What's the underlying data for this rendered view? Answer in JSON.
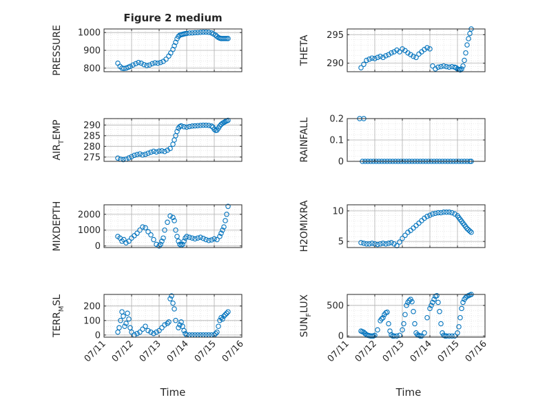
{
  "figure_title": "Figure 2 medium",
  "colors": {
    "marker": "#0072BD",
    "axis": "#262626",
    "grid": "#b0b0b0"
  },
  "x_ticks": [
    "07/11",
    "07/12",
    "07/13",
    "07/14",
    "07/15",
    "07/16"
  ],
  "chart_data": [
    {
      "type": "scatter",
      "title": "Figure 2 medium",
      "ylabel": {
        "parts": [
          {
            "t": "PRESSURE"
          }
        ]
      },
      "xlabel": "",
      "xlim": [
        0,
        5
      ],
      "ylim": [
        780,
        1020
      ],
      "yticks": [
        800,
        900,
        1000
      ],
      "ytick_labels": [
        "800",
        "900",
        "1000"
      ],
      "grid": true,
      "series": [
        {
          "x": [
            0.5,
            0.58,
            0.65,
            0.72,
            0.8,
            0.88,
            0.95,
            1.05,
            1.15,
            1.25,
            1.35,
            1.45,
            1.55,
            1.65,
            1.75,
            1.85,
            1.95,
            2.05,
            2.15,
            2.25,
            2.35,
            2.42,
            2.5,
            2.55,
            2.6,
            2.65,
            2.7,
            2.75,
            2.8,
            2.85,
            2.9,
            2.95,
            3.0,
            3.1,
            3.2,
            3.3,
            3.4,
            3.5,
            3.6,
            3.7,
            3.8,
            3.9,
            3.97,
            4.05,
            4.1,
            4.15,
            4.2,
            4.25,
            4.3,
            4.35,
            4.4,
            4.45,
            4.5
          ],
          "y": [
            828,
            810,
            800,
            798,
            800,
            805,
            810,
            818,
            825,
            832,
            828,
            820,
            815,
            818,
            825,
            830,
            828,
            832,
            838,
            850,
            868,
            885,
            905,
            925,
            945,
            965,
            978,
            985,
            988,
            990,
            992,
            994,
            995,
            997,
            998,
            999,
            1000,
            1001,
            1002,
            1002,
            1001,
            998,
            992,
            985,
            978,
            972,
            968,
            966,
            966,
            966,
            966,
            966,
            966
          ]
        }
      ]
    },
    {
      "type": "scatter",
      "ylabel": {
        "parts": [
          {
            "t": "THETA"
          }
        ]
      },
      "xlabel": "",
      "xlim": [
        0,
        5
      ],
      "ylim": [
        288.5,
        296
      ],
      "yticks": [
        290,
        295
      ],
      "ytick_labels": [
        "290",
        "295"
      ],
      "grid": true,
      "series": [
        {
          "x": [
            0.5,
            0.6,
            0.7,
            0.8,
            0.9,
            1.0,
            1.1,
            1.2,
            1.3,
            1.4,
            1.5,
            1.6,
            1.7,
            1.8,
            1.9,
            2.0,
            2.1,
            2.2,
            2.3,
            2.4,
            2.5,
            2.6,
            2.7,
            2.8,
            2.9,
            3.0,
            3.1,
            3.2,
            3.3,
            3.4,
            3.5,
            3.6,
            3.7,
            3.8,
            3.9,
            3.95,
            4.0,
            4.05,
            4.1,
            4.15,
            4.2,
            4.25,
            4.3,
            4.35,
            4.4,
            4.45,
            4.5
          ],
          "y": [
            289.2,
            289.8,
            290.5,
            290.7,
            290.9,
            290.8,
            291.0,
            291.2,
            291.0,
            291.3,
            291.5,
            291.8,
            292.0,
            292.3,
            292.0,
            292.5,
            292.2,
            291.8,
            291.5,
            291.2,
            291.0,
            291.6,
            292.0,
            292.4,
            292.7,
            292.5,
            289.5,
            289.0,
            289.3,
            289.4,
            289.5,
            289.4,
            289.3,
            289.4,
            289.3,
            289.2,
            289.0,
            288.9,
            288.8,
            289.0,
            289.5,
            290.5,
            291.8,
            293.2,
            294.3,
            295.2,
            296.0
          ]
        }
      ]
    },
    {
      "type": "scatter",
      "ylabel": {
        "parts": [
          {
            "t": "AIR"
          },
          {
            "t": "T",
            "sub": true
          },
          {
            "t": "EMP"
          }
        ]
      },
      "xlabel": "",
      "xlim": [
        0,
        5
      ],
      "ylim": [
        273,
        293
      ],
      "yticks": [
        275,
        280,
        285,
        290
      ],
      "ytick_labels": [
        "275",
        "280",
        "285",
        "290"
      ],
      "grid": true,
      "series": [
        {
          "x": [
            0.5,
            0.6,
            0.7,
            0.8,
            0.9,
            1.0,
            1.1,
            1.2,
            1.3,
            1.4,
            1.5,
            1.6,
            1.7,
            1.8,
            1.9,
            2.0,
            2.1,
            2.2,
            2.3,
            2.4,
            2.5,
            2.55,
            2.6,
            2.65,
            2.7,
            2.75,
            2.8,
            2.9,
            3.0,
            3.1,
            3.2,
            3.3,
            3.4,
            3.5,
            3.6,
            3.7,
            3.8,
            3.9,
            3.95,
            4.0,
            4.05,
            4.1,
            4.15,
            4.2,
            4.25,
            4.3,
            4.35,
            4.4,
            4.45,
            4.5
          ],
          "y": [
            274.5,
            274.0,
            273.8,
            274.0,
            274.6,
            275.2,
            275.8,
            276.2,
            276.5,
            276.0,
            276.3,
            276.8,
            277.3,
            277.7,
            277.4,
            277.8,
            277.9,
            277.6,
            278.2,
            279.0,
            281.0,
            283.0,
            285.0,
            287.0,
            288.5,
            289.3,
            289.6,
            289.2,
            289.0,
            289.3,
            289.5,
            289.6,
            289.7,
            289.8,
            289.9,
            289.9,
            289.8,
            289.5,
            289.0,
            288.0,
            287.5,
            287.6,
            288.5,
            289.5,
            290.3,
            290.8,
            291.2,
            291.6,
            291.9,
            292.2
          ]
        }
      ]
    },
    {
      "type": "scatter",
      "ylabel": {
        "parts": [
          {
            "t": "RAINFALL"
          }
        ]
      },
      "xlabel": "",
      "xlim": [
        0,
        5
      ],
      "ylim": [
        0,
        0.2
      ],
      "yticks": [
        0,
        0.1,
        0.2
      ],
      "ytick_labels": [
        "0",
        "0.1",
        "0.2"
      ],
      "grid": true,
      "series": [
        {
          "x": [
            0.45,
            0.6,
            0.55,
            0.65,
            0.75,
            0.85,
            0.95,
            1.05,
            1.15,
            1.25,
            1.35,
            1.45,
            1.55,
            1.65,
            1.75,
            1.85,
            1.95,
            2.05,
            2.15,
            2.25,
            2.35,
            2.45,
            2.55,
            2.65,
            2.75,
            2.85,
            2.95,
            3.05,
            3.15,
            3.25,
            3.35,
            3.45,
            3.55,
            3.65,
            3.75,
            3.85,
            3.95,
            4.05,
            4.15,
            4.25,
            4.35,
            4.45,
            4.5
          ],
          "y": [
            0.2,
            0.2,
            0,
            0,
            0,
            0,
            0,
            0,
            0,
            0,
            0,
            0,
            0,
            0,
            0,
            0,
            0,
            0,
            0,
            0,
            0,
            0,
            0,
            0,
            0,
            0,
            0,
            0,
            0,
            0,
            0,
            0,
            0,
            0,
            0,
            0,
            0,
            0,
            0,
            0,
            0,
            0,
            0
          ]
        }
      ]
    },
    {
      "type": "scatter",
      "ylabel": {
        "parts": [
          {
            "t": "MIXDEPTH"
          }
        ]
      },
      "xlabel": "",
      "xlim": [
        0,
        5
      ],
      "ylim": [
        -100,
        2600
      ],
      "yticks": [
        0,
        1000,
        2000
      ],
      "ytick_labels": [
        "0",
        "1000",
        "2000"
      ],
      "grid": true,
      "series": [
        {
          "x": [
            0.5,
            0.58,
            0.65,
            0.72,
            0.8,
            0.9,
            1.0,
            1.1,
            1.2,
            1.3,
            1.4,
            1.5,
            1.6,
            1.7,
            1.8,
            1.9,
            2.0,
            2.05,
            2.1,
            2.15,
            2.2,
            2.3,
            2.4,
            2.5,
            2.55,
            2.6,
            2.65,
            2.7,
            2.75,
            2.8,
            2.85,
            2.9,
            2.95,
            3.0,
            3.1,
            3.2,
            3.3,
            3.4,
            3.5,
            3.6,
            3.7,
            3.8,
            3.9,
            4.0,
            4.1,
            4.2,
            4.25,
            4.3,
            4.35,
            4.4,
            4.45,
            4.5
          ],
          "y": [
            600,
            500,
            300,
            400,
            200,
            300,
            500,
            650,
            800,
            1000,
            1200,
            1150,
            900,
            700,
            400,
            100,
            0,
            100,
            300,
            500,
            1000,
            1500,
            1900,
            1800,
            1600,
            1000,
            600,
            300,
            100,
            50,
            100,
            300,
            500,
            600,
            550,
            500,
            450,
            500,
            550,
            480,
            400,
            350,
            380,
            450,
            400,
            600,
            800,
            1000,
            1200,
            1600,
            2000,
            2500
          ]
        }
      ]
    },
    {
      "type": "scatter",
      "ylabel": {
        "parts": [
          {
            "t": "H2OMIXRA"
          }
        ]
      },
      "xlabel": "",
      "xlim": [
        0,
        5
      ],
      "ylim": [
        4,
        11
      ],
      "yticks": [
        5,
        10
      ],
      "ytick_labels": [
        "5",
        "10"
      ],
      "grid": true,
      "series": [
        {
          "x": [
            0.5,
            0.6,
            0.7,
            0.8,
            0.9,
            1.0,
            1.1,
            1.2,
            1.3,
            1.4,
            1.5,
            1.6,
            1.7,
            1.8,
            1.9,
            2.0,
            2.1,
            2.2,
            2.3,
            2.4,
            2.5,
            2.6,
            2.7,
            2.8,
            2.9,
            3.0,
            3.1,
            3.2,
            3.3,
            3.4,
            3.5,
            3.6,
            3.7,
            3.8,
            3.9,
            4.0,
            4.05,
            4.1,
            4.15,
            4.2,
            4.25,
            4.3,
            4.35,
            4.4,
            4.45,
            4.5
          ],
          "y": [
            4.8,
            4.7,
            4.6,
            4.6,
            4.7,
            4.6,
            4.5,
            4.6,
            4.7,
            4.6,
            4.7,
            4.8,
            4.6,
            4.3,
            4.9,
            5.5,
            6.0,
            6.5,
            6.8,
            7.2,
            7.6,
            8.0,
            8.4,
            8.8,
            9.1,
            9.3,
            9.5,
            9.6,
            9.7,
            9.7,
            9.8,
            9.8,
            9.8,
            9.7,
            9.5,
            9.2,
            8.9,
            8.6,
            8.3,
            8.0,
            7.7,
            7.4,
            7.1,
            6.9,
            6.7,
            6.5
          ]
        }
      ]
    },
    {
      "type": "scatter",
      "ylabel": {
        "parts": [
          {
            "t": "TERR"
          },
          {
            "t": "M",
            "sub": true
          },
          {
            "t": "SL"
          }
        ]
      },
      "xlabel": "Time",
      "xlim": [
        0,
        5
      ],
      "ylim": [
        -15,
        280
      ],
      "yticks": [
        0,
        100,
        200
      ],
      "ytick_labels": [
        "0",
        "100",
        "200"
      ],
      "grid": true,
      "series": [
        {
          "x": [
            0.5,
            0.55,
            0.6,
            0.65,
            0.7,
            0.75,
            0.8,
            0.85,
            0.9,
            0.95,
            1.0,
            1.1,
            1.2,
            1.3,
            1.4,
            1.5,
            1.6,
            1.7,
            1.8,
            1.9,
            2.0,
            2.1,
            2.2,
            2.3,
            2.35,
            2.4,
            2.45,
            2.5,
            2.55,
            2.6,
            2.7,
            2.75,
            2.8,
            2.85,
            2.9,
            2.95,
            3.0,
            3.1,
            3.2,
            3.3,
            3.4,
            3.5,
            3.6,
            3.7,
            3.8,
            3.9,
            4.0,
            4.05,
            4.1,
            4.15,
            4.2,
            4.25,
            4.3,
            4.35,
            4.4,
            4.45,
            4.5
          ],
          "y": [
            20,
            50,
            100,
            160,
            130,
            60,
            80,
            150,
            110,
            50,
            20,
            0,
            10,
            20,
            40,
            60,
            30,
            20,
            10,
            20,
            30,
            50,
            70,
            80,
            90,
            250,
            270,
            220,
            180,
            100,
            50,
            70,
            90,
            60,
            30,
            10,
            0,
            0,
            0,
            0,
            0,
            0,
            0,
            0,
            0,
            0,
            0,
            10,
            20,
            60,
            100,
            120,
            110,
            130,
            140,
            150,
            160
          ]
        }
      ]
    },
    {
      "type": "scatter",
      "ylabel": {
        "parts": [
          {
            "t": "SUN"
          },
          {
            "t": "F",
            "sub": true
          },
          {
            "t": "LUX"
          }
        ]
      },
      "xlabel": "Time",
      "xlim": [
        0,
        5
      ],
      "ylim": [
        -20,
        680
      ],
      "yticks": [
        0,
        500
      ],
      "ytick_labels": [
        "0",
        "500"
      ],
      "grid": true,
      "series": [
        {
          "x": [
            0.5,
            0.55,
            0.6,
            0.65,
            0.7,
            0.75,
            0.8,
            0.85,
            0.9,
            0.95,
            1.0,
            1.1,
            1.2,
            1.25,
            1.3,
            1.35,
            1.4,
            1.45,
            1.5,
            1.55,
            1.6,
            1.65,
            1.7,
            1.8,
            1.9,
            2.0,
            2.05,
            2.1,
            2.15,
            2.2,
            2.25,
            2.3,
            2.35,
            2.4,
            2.45,
            2.5,
            2.55,
            2.6,
            2.65,
            2.7,
            2.8,
            2.9,
            3.0,
            3.05,
            3.1,
            3.15,
            3.2,
            3.25,
            3.3,
            3.35,
            3.4,
            3.45,
            3.5,
            3.55,
            3.6,
            3.7,
            3.8,
            3.9,
            4.0,
            4.05,
            4.1,
            4.15,
            4.2,
            4.25,
            4.3,
            4.35,
            4.4,
            4.45,
            4.5
          ],
          "y": [
            80,
            70,
            60,
            40,
            20,
            10,
            5,
            0,
            0,
            0,
            10,
            100,
            250,
            280,
            300,
            350,
            380,
            390,
            200,
            80,
            20,
            0,
            0,
            0,
            10,
            100,
            200,
            350,
            500,
            550,
            580,
            600,
            560,
            400,
            200,
            50,
            20,
            10,
            0,
            0,
            50,
            300,
            450,
            500,
            550,
            600,
            650,
            660,
            550,
            400,
            200,
            50,
            10,
            0,
            0,
            0,
            0,
            0,
            50,
            150,
            300,
            450,
            550,
            600,
            630,
            650,
            660,
            670,
            680
          ]
        }
      ]
    }
  ]
}
